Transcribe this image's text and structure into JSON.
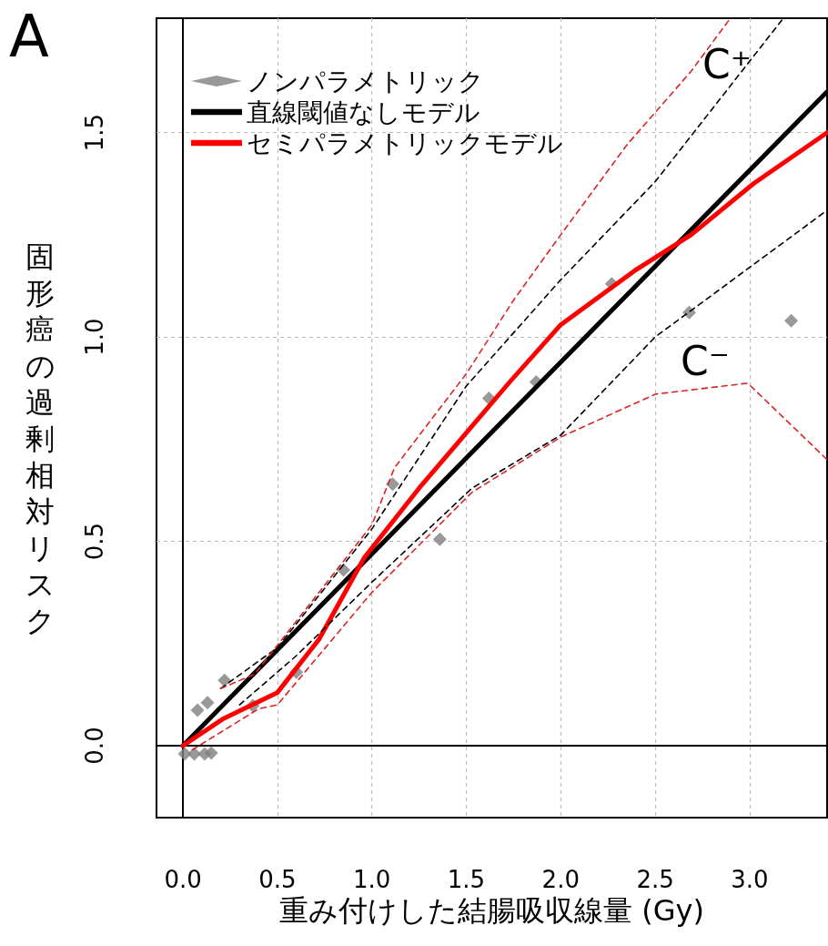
{
  "chart_data": {
    "type": "line",
    "xlabel": "重み付けした結腸吸収線量 (Gy)",
    "ylabel": "固形癌の過剰相対リスク",
    "annotations": [
      "A",
      "C⁺",
      "C⁻"
    ],
    "xlim": [
      -0.14,
      3.41
    ],
    "ylim": [
      -0.176,
      1.78
    ],
    "xticks": [
      {
        "value": 0,
        "label": "0.0"
      },
      {
        "value": 0.5,
        "label": "0.5"
      },
      {
        "value": 1,
        "label": "1.0"
      },
      {
        "value": 1.5,
        "label": "1.5"
      },
      {
        "value": 2,
        "label": "2.0"
      },
      {
        "value": 2.5,
        "label": "2.5"
      },
      {
        "value": 3,
        "label": "3.0"
      }
    ],
    "yticks": [
      {
        "value": 0,
        "label": "0.0"
      },
      {
        "value": 0.5,
        "label": "0.5"
      },
      {
        "value": 1,
        "label": "1.0"
      },
      {
        "value": 1.5,
        "label": "1.5"
      }
    ],
    "grid": true,
    "legend": "top left",
    "series": [
      {
        "name": "ノンパラメトリック",
        "type": "scatter",
        "marker": "diamond",
        "color": "#808080",
        "x": [
          0.01,
          0.06,
          0.115,
          0.15,
          0.077,
          0.13,
          0.22,
          0.37,
          0.6,
          0.85,
          1.11,
          1.36,
          1.62,
          1.87,
          2.27,
          2.68,
          3.22
        ],
        "values": [
          -0.02,
          -0.02,
          -0.02,
          -0.018,
          0.087,
          0.105,
          0.16,
          0.098,
          0.18,
          0.43,
          0.64,
          0.505,
          0.85,
          0.89,
          1.13,
          1.06,
          1.04
        ]
      },
      {
        "name": "直線閾値なしモデル",
        "color": "#000000",
        "line_style": "solid",
        "x": [
          0,
          3.41
        ],
        "values": [
          0,
          1.6
        ]
      },
      {
        "name": "セミパラメトリックモデル",
        "color": "#ff0000",
        "line_style": "solid",
        "x": [
          0,
          0.21,
          0.5,
          0.72,
          0.96,
          1.25,
          1.73,
          2.0,
          2.4,
          2.69,
          3.02,
          3.41
        ],
        "values": [
          0,
          0.065,
          0.13,
          0.26,
          0.46,
          0.63,
          0.89,
          1.03,
          1.165,
          1.25,
          1.375,
          1.5
        ]
      },
      {
        "color": "#000000",
        "line_style": "dashed",
        "x": [
          0.2,
          0.5,
          1.0,
          1.5,
          2.0,
          2.5,
          3.17
        ],
        "values": [
          0.14,
          0.24,
          0.53,
          0.88,
          1.14,
          1.38,
          1.775
        ]
      },
      {
        "color": "#000000",
        "line_style": "dashed",
        "x": [
          0.3,
          0.6,
          1.0,
          1.53,
          2.0,
          2.5,
          3.41
        ],
        "values": [
          0.1,
          0.22,
          0.4,
          0.63,
          0.76,
          1.0,
          1.31
        ]
      },
      {
        "color": "#dd2222",
        "line_style": "dashed",
        "x": [
          0.2,
          0.38,
          0.72,
          1.0,
          1.12,
          1.5,
          1.75,
          2.0,
          2.35,
          2.69,
          2.89
        ],
        "values": [
          0.14,
          0.175,
          0.375,
          0.54,
          0.68,
          0.91,
          1.09,
          1.25,
          1.47,
          1.65,
          1.775
        ]
      },
      {
        "color": "#dd2222",
        "line_style": "dashed",
        "x": [
          0.05,
          0.4,
          0.5,
          1.0,
          1.53,
          2.0,
          2.5,
          2.99,
          3.41
        ],
        "values": [
          -0.01,
          0.09,
          0.1,
          0.375,
          0.62,
          0.755,
          0.86,
          0.887,
          0.7
        ]
      }
    ]
  }
}
